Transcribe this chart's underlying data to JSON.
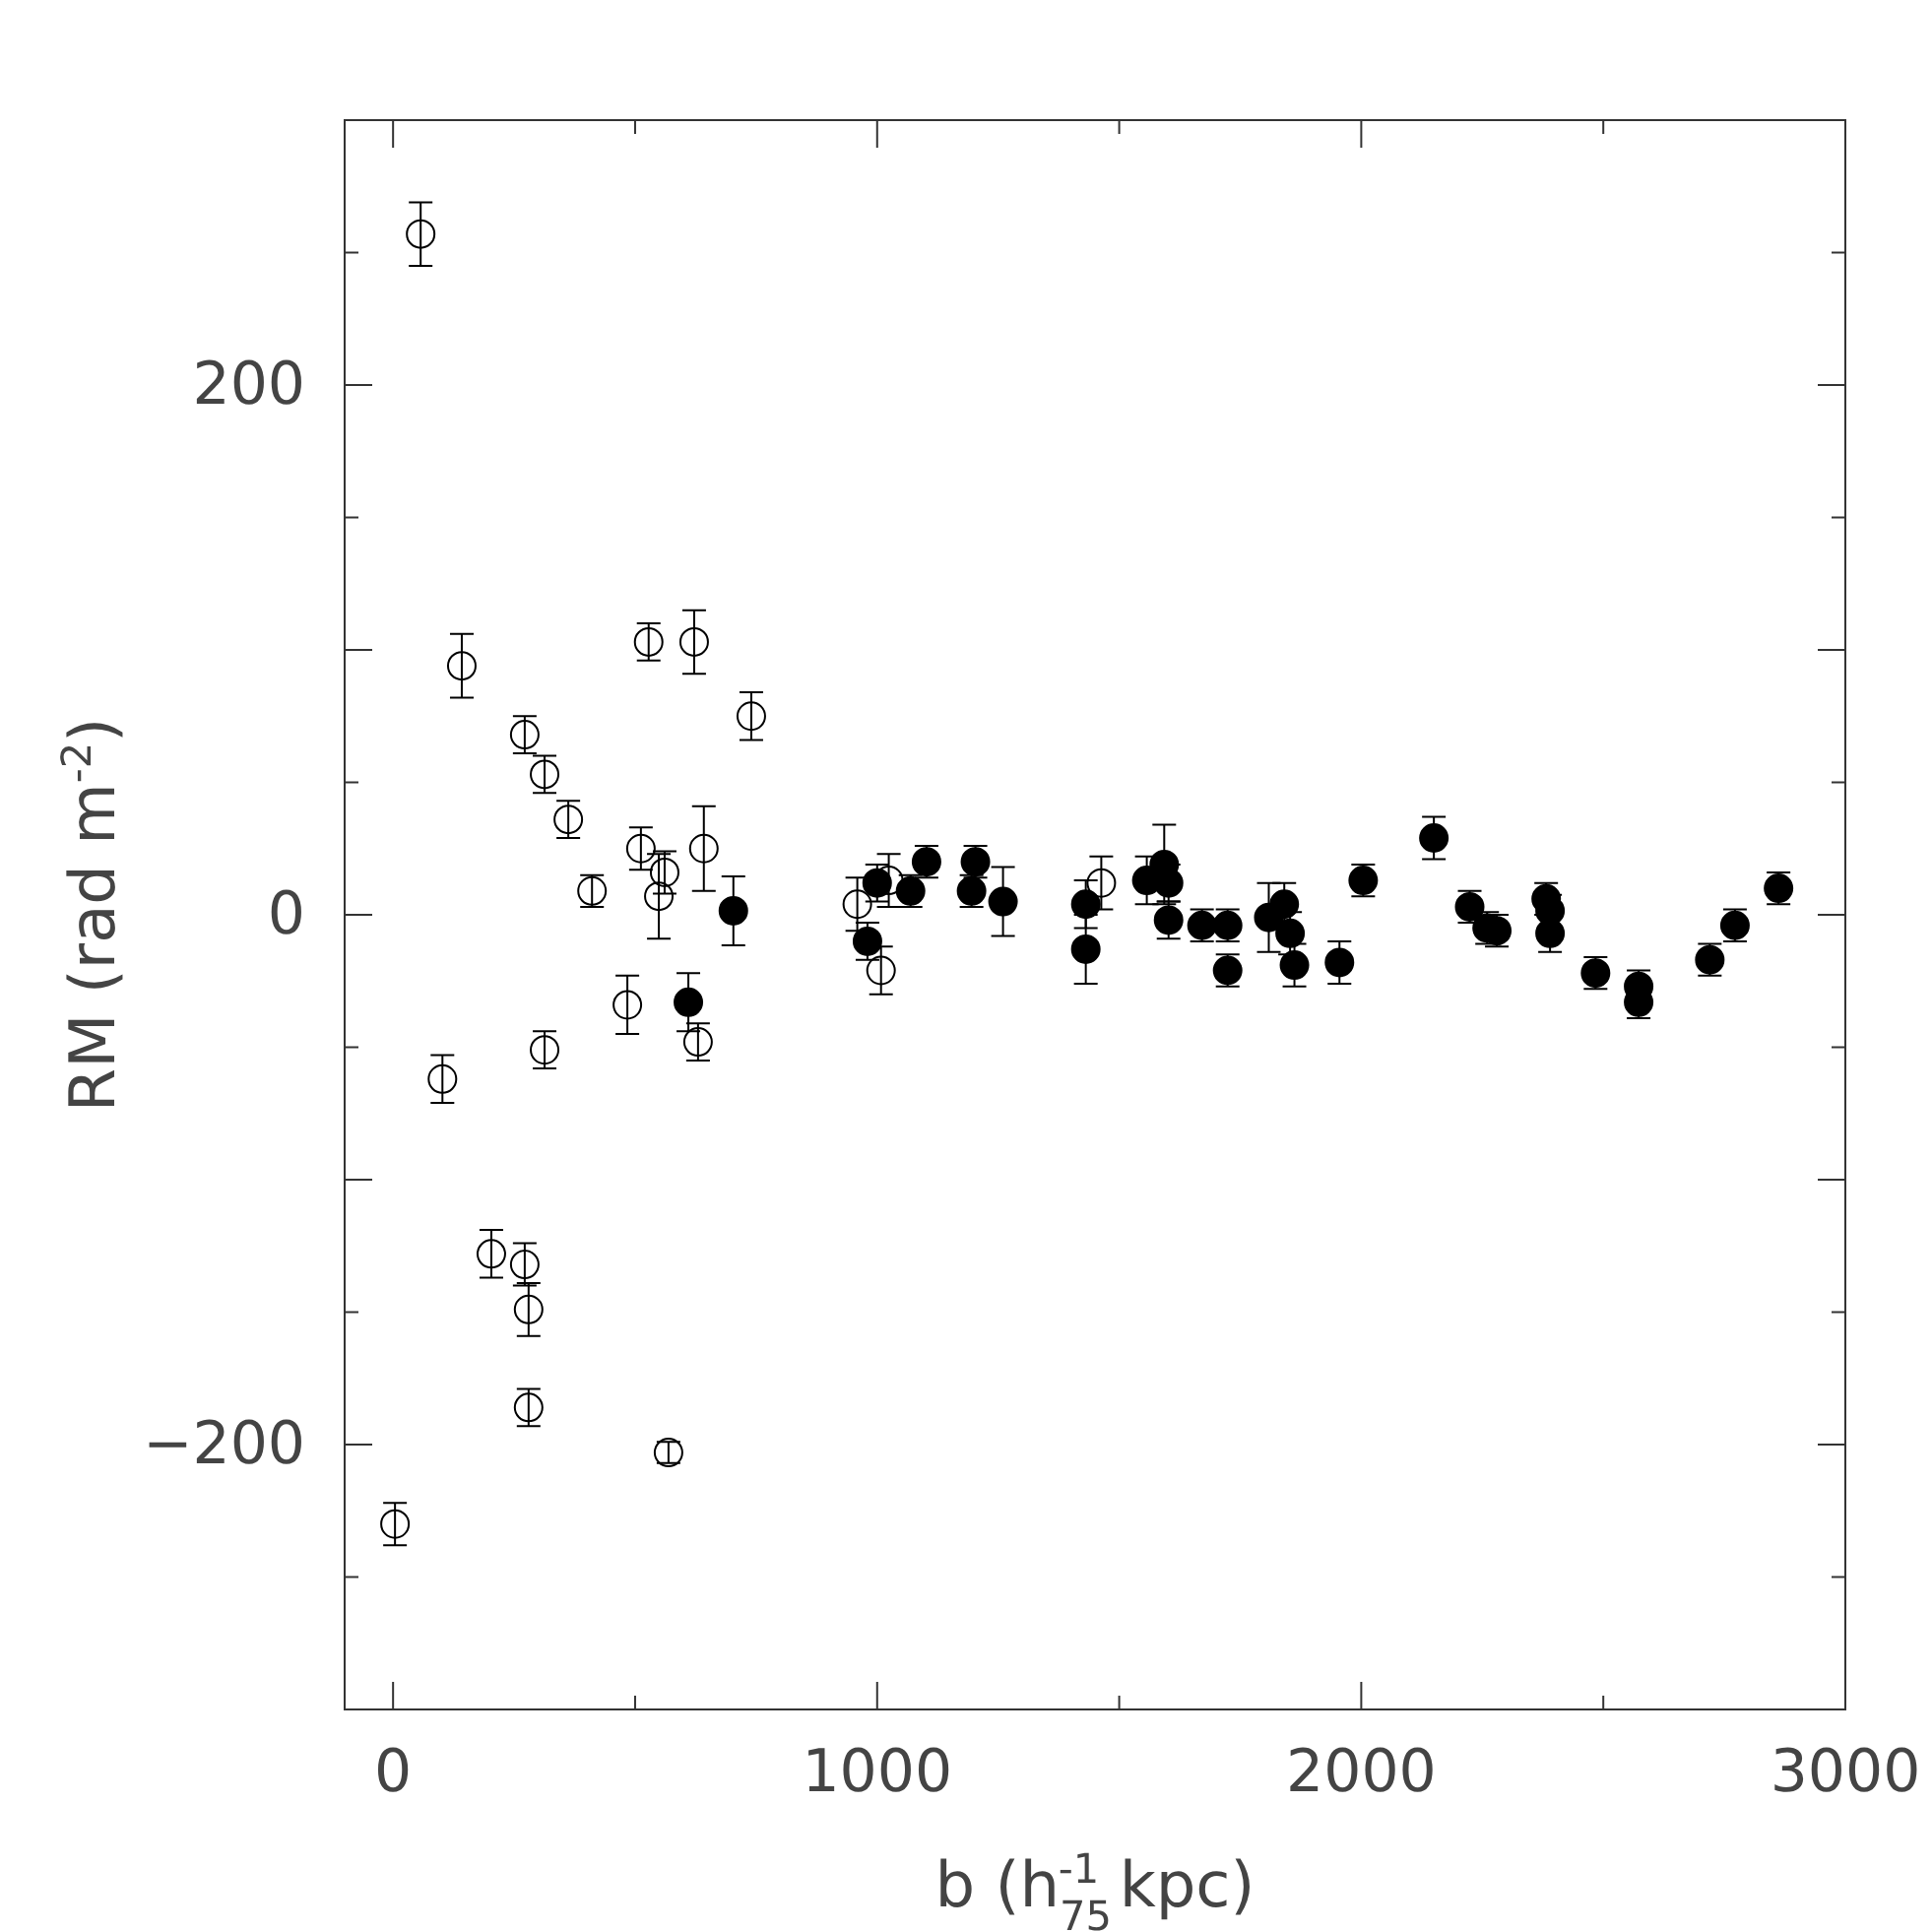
{
  "chart_data": {
    "type": "scatter",
    "xlabel": "b (h$_{75}$$^{-1}$ kpc)",
    "ylabel": "RM (rad m$^{-2}$)",
    "xlim": [
      -100,
      3000
    ],
    "ylim": [
      -300,
      300
    ],
    "xticks": [
      0,
      {
        "value": 500,
        "label": null
      },
      1000,
      {
        "value": 1500,
        "label": null
      },
      2000,
      {
        "value": 2500,
        "label": null
      },
      3000
    ],
    "yticks": [
      {
        "value": -300,
        "label": null
      },
      {
        "value": -250,
        "label": null
      },
      -200,
      {
        "value": -150,
        "label": null
      },
      {
        "value": -100,
        "label": null
      },
      {
        "value": -50,
        "label": null
      },
      0,
      {
        "value": 50,
        "label": null
      },
      {
        "value": 100,
        "label": null
      },
      {
        "value": 150,
        "label": null
      },
      200,
      {
        "value": 250,
        "label": null
      },
      {
        "value": 300,
        "label": null
      }
    ],
    "grid": false,
    "marker": "circle",
    "series": [
      {
        "color": "#000000",
        "x": [
          57,
          142,
          272,
          313,
          362,
          411,
          512,
          561,
          549,
          528,
          622,
          642,
          740,
          959,
          1008,
          1024,
          1463,
          102,
          313,
          484,
          630,
          203,
          272,
          280,
          280,
          569,
          4
        ],
        "values": [
          257,
          94,
          68,
          53,
          36,
          9,
          25,
          16,
          7,
          103,
          103,
          25,
          75,
          4,
          -21,
          13,
          12,
          -62,
          -51,
          -34,
          -48,
          -128,
          -132,
          -149,
          -186,
          -203,
          -230
        ],
        "errors": [
          12,
          12,
          7,
          7,
          7,
          6,
          8,
          8,
          16,
          7,
          12,
          16,
          9,
          10,
          9,
          10,
          10,
          9,
          7,
          11,
          7,
          9,
          8,
          10,
          7,
          4,
          8
        ]
      },
      {
        "color": "#000000",
        "x": [
          703,
          610,
          1000,
          980,
          1069,
          1102,
          1203,
          1195,
          1260,
          1431,
          1431,
          1557,
          1593,
          1602,
          1602,
          1671,
          1724,
          1724,
          1809,
          1841,
          1853,
          1862,
          1955,
          2004,
          2150,
          2224,
          2260,
          2280,
          2382,
          2390,
          2390,
          2484,
          2573,
          2573,
          2720,
          2772,
          2862
        ],
        "values": [
          1.5,
          -33,
          12,
          -10,
          9,
          20,
          20,
          9,
          5,
          4,
          -13,
          13,
          19,
          12,
          -2,
          -4,
          -4,
          -21,
          -1,
          4,
          -7,
          -19,
          -18,
          13,
          29,
          3,
          -5,
          -6,
          6,
          1.5,
          -7,
          -22,
          -27,
          -33,
          -17,
          -4,
          10
        ],
        "errors": [
          13,
          11,
          7,
          7,
          6,
          6,
          6,
          6,
          13,
          9,
          13,
          9,
          15,
          7,
          7,
          6,
          6,
          6,
          13,
          8,
          8,
          8,
          8,
          6,
          8,
          6,
          6,
          6,
          6,
          6,
          7,
          6,
          6,
          6,
          6,
          6,
          6
        ]
      }
    ]
  }
}
